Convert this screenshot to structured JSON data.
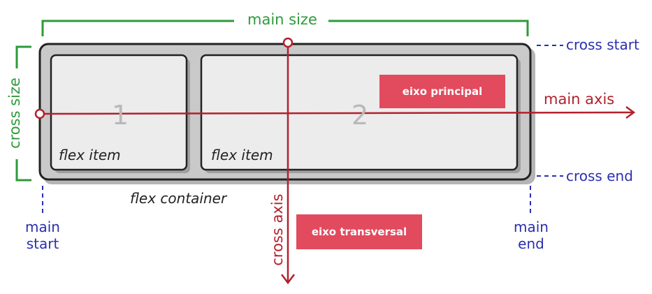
{
  "labels": {
    "main_size": "main size",
    "cross_size": "cross size",
    "cross_start": "cross start",
    "cross_end": "cross end",
    "main_axis": "main axis",
    "cross_axis": "cross axis",
    "main_start_line1": "main",
    "main_start_line2": "start",
    "main_end_line1": "main",
    "main_end_line2": "end",
    "flex_container": "flex container",
    "item1_label": "flex item",
    "item2_label": "flex item",
    "item1_number": "1",
    "item2_number": "2"
  },
  "badges": {
    "eixo_principal": "eixo principal",
    "eixo_transversal": "eixo transversal"
  },
  "colors": {
    "green": "#2e9a3a",
    "blue": "#2b2fae",
    "crimson": "#b3202c",
    "badge": "#e24a5d",
    "container_fill": "#c9c9c9",
    "item_fill": "#ececec"
  }
}
